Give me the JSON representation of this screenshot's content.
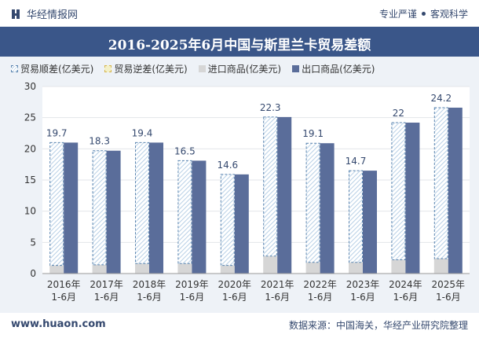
{
  "header": {
    "brand": "华经情报网",
    "slogan_left": "专业严谨",
    "slogan_right": "客观科学",
    "title": "2016-2025年6月中国与斯里兰卡贸易差额"
  },
  "footer": {
    "url": "www.huaon.com",
    "source": "数据来源：中国海关，华经产业研究院整理"
  },
  "colors": {
    "header_band": "#3a5689",
    "export_bar": "#5a6d9a",
    "import_bar": "#d6d6d6",
    "surplus_fill": "#d2e2f0",
    "surplus_border": "#5b85b0"
  },
  "chart_data": {
    "type": "bar",
    "title": "2016-2025年6月中国与斯里兰卡贸易差额",
    "xlabel": "",
    "ylabel": "",
    "ylim": [
      0,
      30
    ],
    "yticks": [
      0,
      5,
      10,
      15,
      20,
      25,
      30
    ],
    "grid": true,
    "legend_position": "top-left",
    "categories": [
      "2016年\n1-6月",
      "2017年\n1-6月",
      "2018年\n1-6月",
      "2019年\n1-6月",
      "2020年\n1-6月",
      "2021年\n1-6月",
      "2022年\n1-6月",
      "2023年\n1-6月",
      "2024年\n1-6月",
      "2025年\n1-6月"
    ],
    "series": [
      {
        "name": "贸易顺差(亿美元)",
        "values": [
          19.7,
          18.3,
          19.4,
          16.5,
          14.6,
          22.3,
          19.1,
          14.7,
          22.0,
          24.2
        ]
      },
      {
        "name": "贸易逆差(亿美元)",
        "values": [
          0,
          0,
          0,
          0,
          0,
          0,
          0,
          0,
          0,
          0
        ]
      },
      {
        "name": "进口商品(亿美元)",
        "values": [
          1.3,
          1.4,
          1.6,
          1.6,
          1.3,
          2.8,
          1.8,
          1.8,
          2.2,
          2.4
        ]
      },
      {
        "name": "出口商品(亿美元)",
        "values": [
          21.0,
          19.7,
          21.0,
          18.1,
          15.9,
          25.1,
          20.9,
          16.5,
          24.2,
          26.6
        ]
      }
    ],
    "data_labels": [
      "19.7",
      "18.3",
      "19.4",
      "16.5",
      "14.6",
      "22.3",
      "19.1",
      "14.7",
      "22",
      "24.2"
    ]
  }
}
